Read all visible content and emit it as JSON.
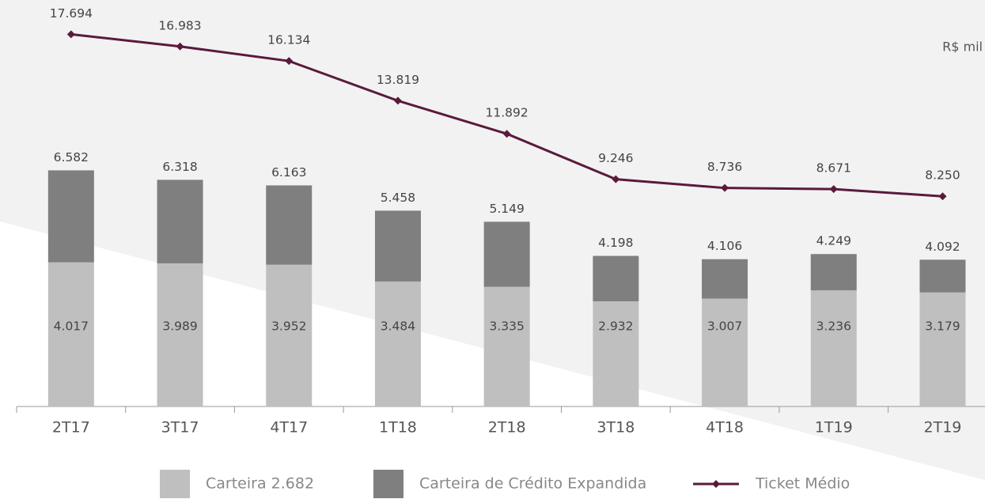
{
  "chart_data": {
    "type": "bar",
    "unit_label": "R$ mil",
    "categories": [
      "2T17",
      "3T17",
      "4T17",
      "1T18",
      "2T18",
      "3T18",
      "4T18",
      "1T19",
      "2T19"
    ],
    "series": [
      {
        "name": "Carteira 2.682",
        "color": "#bfbfbf",
        "values": [
          4017,
          3989,
          3952,
          3484,
          3335,
          2932,
          3007,
          3236,
          3179
        ],
        "value_labels": [
          "4.017",
          "3.989",
          "3.952",
          "3.484",
          "3.335",
          "2.932",
          "3.007",
          "3.236",
          "3.179"
        ]
      },
      {
        "name": "Carteira de Crédito Expandida",
        "color": "#7f7f7f",
        "values": [
          2565,
          2329,
          2211,
          1974,
          1814,
          1266,
          1099,
          1013,
          913
        ]
      },
      {
        "name": "Ticket Médio",
        "color": "#5a1a3c",
        "type": "line",
        "axis": "y2",
        "values": [
          17694,
          16983,
          16134,
          13819,
          11892,
          9246,
          8736,
          8671,
          8250
        ],
        "value_labels": [
          "17.694",
          "16.983",
          "16.134",
          "13.819",
          "11.892",
          "9.246",
          "8.736",
          "8.671",
          "8.250"
        ]
      }
    ],
    "totals": [
      6582,
      6318,
      6163,
      5458,
      5149,
      4198,
      4106,
      4249,
      4092
    ],
    "total_labels": [
      "6.582",
      "6.318",
      "6.163",
      "5.458",
      "5.149",
      "4.198",
      "4.106",
      "4.249",
      "4.092"
    ],
    "ylim": [
      0,
      11000
    ],
    "y2lim": [
      -4000,
      19000
    ]
  }
}
